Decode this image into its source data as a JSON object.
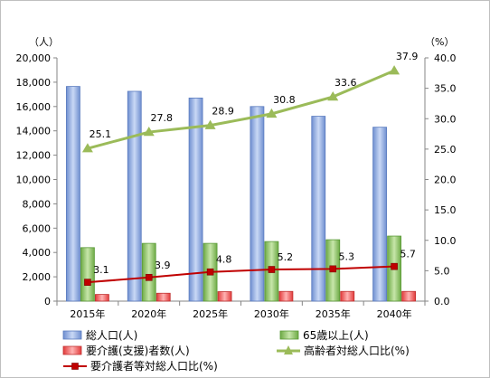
{
  "chart_data": {
    "type": "bar",
    "categories": [
      "2015年",
      "2020年",
      "2025年",
      "2030年",
      "2035年",
      "2040年"
    ],
    "left_axis": {
      "unit_label": "（人）",
      "min": 0,
      "max": 20000,
      "step": 2000,
      "tick_labels": [
        "0",
        "2,000",
        "4,000",
        "6,000",
        "8,000",
        "10,000",
        "12,000",
        "14,000",
        "16,000",
        "18,000",
        "20,000"
      ]
    },
    "right_axis": {
      "unit_label": "（%）",
      "min": 0,
      "max": 40,
      "step": 5,
      "tick_labels": [
        "0.0",
        "5.0",
        "10.0",
        "15.0",
        "20.0",
        "25.0",
        "30.0",
        "35.0",
        "40.0"
      ]
    },
    "series": [
      {
        "name": "総人口(人)",
        "type": "bar",
        "axis": "left",
        "color": "#8ea9db",
        "values": [
          17650,
          17250,
          16700,
          16000,
          15200,
          14300
        ]
      },
      {
        "name": "65歳以上(人)",
        "type": "bar",
        "axis": "left",
        "color": "#8fc66a",
        "values": [
          4400,
          4750,
          4750,
          4900,
          5050,
          5350
        ]
      },
      {
        "name": "要介護(支援)者数(人)",
        "type": "bar",
        "axis": "left",
        "color": "#ff5c5c",
        "values": [
          550,
          650,
          780,
          800,
          800,
          800
        ]
      },
      {
        "name": "高齢者対総人口比(%)",
        "type": "line",
        "axis": "right",
        "color": "#9bbb59",
        "values": [
          25.1,
          27.8,
          28.9,
          30.8,
          33.6,
          37.9
        ],
        "labels": [
          "25.1",
          "27.8",
          "28.9",
          "30.8",
          "33.6",
          "37.9"
        ]
      },
      {
        "name": "要介護者等対総人口比(%)",
        "type": "line",
        "axis": "right",
        "color": "#c00000",
        "values": [
          3.1,
          3.9,
          4.8,
          5.2,
          5.3,
          5.7
        ],
        "labels": [
          "3.1",
          "3.9",
          "4.8",
          "5.2",
          "5.3",
          "5.7"
        ]
      }
    ],
    "grid": false,
    "legend_position": "bottom"
  }
}
